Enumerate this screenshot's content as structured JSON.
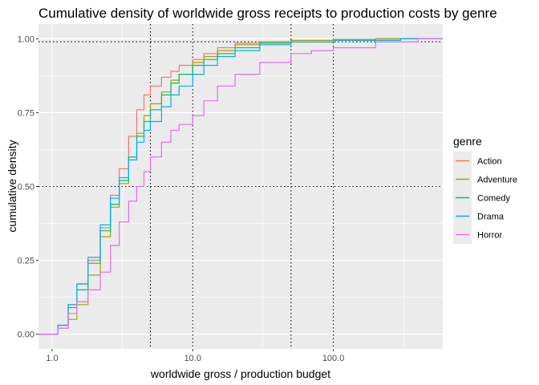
{
  "chart_data": {
    "type": "line",
    "title": "Cumulative density of worldwide gross receipts to production costs by genre",
    "xlabel": "worldwide gross / production budget",
    "ylabel": "cumulative density",
    "x_scale": "log10",
    "xlim": [
      0.8,
      600
    ],
    "ylim": [
      -0.05,
      1.05
    ],
    "x_ticks": [
      1,
      10,
      100
    ],
    "x_tick_labels": [
      "1.0",
      "10.0",
      "100.0"
    ],
    "y_ticks": [
      0,
      0.25,
      0.5,
      0.75,
      1
    ],
    "y_tick_labels": [
      "0.00",
      "0.25",
      "0.50",
      "0.75",
      "1.00"
    ],
    "grid": true,
    "reference_lines": {
      "vertical_x": [
        5,
        10,
        50,
        100
      ],
      "horizontal_y": [
        0.5,
        0.99
      ],
      "style": "dotted"
    },
    "legend": {
      "title": "genre",
      "position": "right"
    },
    "series": [
      {
        "name": "Action",
        "color": "#F8766D",
        "points": [
          [
            0.8,
            0
          ],
          [
            1.0,
            0
          ],
          [
            1.1,
            0.03
          ],
          [
            1.3,
            0.1
          ],
          [
            1.5,
            0.17
          ],
          [
            1.8,
            0.25
          ],
          [
            2.2,
            0.36
          ],
          [
            2.6,
            0.47
          ],
          [
            3.0,
            0.56
          ],
          [
            3.5,
            0.67
          ],
          [
            4.0,
            0.76
          ],
          [
            4.5,
            0.81
          ],
          [
            5.0,
            0.84
          ],
          [
            6.0,
            0.87
          ],
          [
            7.0,
            0.89
          ],
          [
            8.0,
            0.91
          ],
          [
            10.0,
            0.93
          ],
          [
            12.0,
            0.95
          ],
          [
            15.0,
            0.97
          ],
          [
            20.0,
            0.985
          ],
          [
            30.0,
            0.99
          ],
          [
            50.0,
            0.995
          ],
          [
            100.0,
            0.998
          ],
          [
            200.0,
            1.0
          ],
          [
            600,
            1.0
          ]
        ]
      },
      {
        "name": "Adventure",
        "color": "#A3A500",
        "points": [
          [
            0.8,
            0
          ],
          [
            1.0,
            0
          ],
          [
            1.1,
            0.02
          ],
          [
            1.3,
            0.05
          ],
          [
            1.5,
            0.1
          ],
          [
            1.8,
            0.2
          ],
          [
            2.2,
            0.33
          ],
          [
            2.6,
            0.43
          ],
          [
            3.0,
            0.51
          ],
          [
            3.5,
            0.6
          ],
          [
            4.0,
            0.68
          ],
          [
            4.5,
            0.74
          ],
          [
            5.0,
            0.78
          ],
          [
            6.0,
            0.82
          ],
          [
            7.0,
            0.86
          ],
          [
            8.0,
            0.88
          ],
          [
            10.0,
            0.92
          ],
          [
            12.0,
            0.94
          ],
          [
            15.0,
            0.96
          ],
          [
            20.0,
            0.98
          ],
          [
            30.0,
            0.99
          ],
          [
            50.0,
            0.995
          ],
          [
            100.0,
            0.998
          ],
          [
            200.0,
            1.0
          ],
          [
            600,
            1.0
          ]
        ]
      },
      {
        "name": "Comedy",
        "color": "#00BF7D",
        "points": [
          [
            0.8,
            0
          ],
          [
            1.0,
            0
          ],
          [
            1.1,
            0.03
          ],
          [
            1.3,
            0.09
          ],
          [
            1.5,
            0.15
          ],
          [
            1.8,
            0.24
          ],
          [
            2.2,
            0.35
          ],
          [
            2.6,
            0.44
          ],
          [
            3.0,
            0.52
          ],
          [
            3.5,
            0.6
          ],
          [
            4.0,
            0.67
          ],
          [
            4.5,
            0.72
          ],
          [
            5.0,
            0.76
          ],
          [
            6.0,
            0.81
          ],
          [
            7.0,
            0.85
          ],
          [
            8.0,
            0.88
          ],
          [
            10.0,
            0.91
          ],
          [
            12.0,
            0.93
          ],
          [
            15.0,
            0.95
          ],
          [
            20.0,
            0.97
          ],
          [
            30.0,
            0.985
          ],
          [
            50.0,
            0.99
          ],
          [
            100.0,
            0.995
          ],
          [
            300.0,
            1.0
          ],
          [
            600,
            1.0
          ]
        ]
      },
      {
        "name": "Drama",
        "color": "#00B0F6",
        "points": [
          [
            0.8,
            0
          ],
          [
            1.0,
            0
          ],
          [
            1.1,
            0.03
          ],
          [
            1.3,
            0.1
          ],
          [
            1.5,
            0.17
          ],
          [
            1.8,
            0.26
          ],
          [
            2.2,
            0.37
          ],
          [
            2.6,
            0.46
          ],
          [
            3.0,
            0.53
          ],
          [
            3.5,
            0.59
          ],
          [
            4.0,
            0.65
          ],
          [
            4.5,
            0.69
          ],
          [
            5.0,
            0.72
          ],
          [
            6.0,
            0.77
          ],
          [
            7.0,
            0.81
          ],
          [
            8.0,
            0.84
          ],
          [
            10.0,
            0.88
          ],
          [
            12.0,
            0.91
          ],
          [
            15.0,
            0.94
          ],
          [
            20.0,
            0.96
          ],
          [
            30.0,
            0.98
          ],
          [
            50.0,
            0.99
          ],
          [
            100.0,
            0.995
          ],
          [
            300.0,
            1.0
          ],
          [
            600,
            1.0
          ]
        ]
      },
      {
        "name": "Horror",
        "color": "#E76BF3",
        "points": [
          [
            0.8,
            0
          ],
          [
            1.0,
            0
          ],
          [
            1.1,
            0.02
          ],
          [
            1.3,
            0.07
          ],
          [
            1.5,
            0.11
          ],
          [
            1.8,
            0.15
          ],
          [
            2.2,
            0.21
          ],
          [
            2.6,
            0.3
          ],
          [
            3.0,
            0.38
          ],
          [
            3.5,
            0.45
          ],
          [
            4.0,
            0.5
          ],
          [
            4.5,
            0.55
          ],
          [
            5.0,
            0.6
          ],
          [
            6.0,
            0.65
          ],
          [
            7.0,
            0.69
          ],
          [
            8.0,
            0.71
          ],
          [
            10.0,
            0.74
          ],
          [
            12.0,
            0.79
          ],
          [
            15.0,
            0.84
          ],
          [
            20.0,
            0.88
          ],
          [
            30.0,
            0.92
          ],
          [
            50.0,
            0.95
          ],
          [
            70.0,
            0.96
          ],
          [
            100.0,
            0.97
          ],
          [
            200.0,
            0.99
          ],
          [
            400.0,
            1.0
          ],
          [
            600,
            1.0
          ]
        ]
      }
    ]
  }
}
